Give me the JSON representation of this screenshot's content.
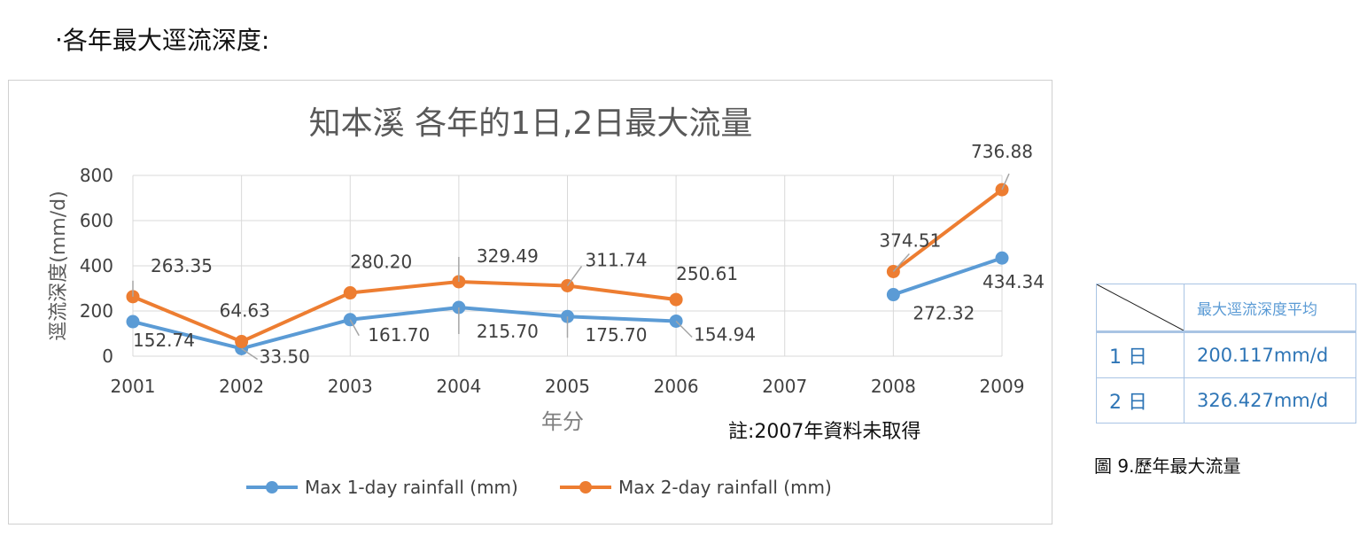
{
  "heading": "‧各年最大逕流深度:",
  "chart_data": {
    "type": "line",
    "title": "知本溪  各年的1日,2日最大流量",
    "xlabel": "年分",
    "ylabel": "逕流深度(mm/d)",
    "ylim": [
      0,
      800
    ],
    "yticks": [
      "0",
      "200",
      "400",
      "600",
      "800"
    ],
    "categories": [
      "2001",
      "2002",
      "2003",
      "2004",
      "2005",
      "2006",
      "2007",
      "2008",
      "2009"
    ],
    "grid": true,
    "legend_position": "bottom",
    "note": "註:2007年資料未取得",
    "series": [
      {
        "name": "Max 1-day rainfall (mm)",
        "color": "#5b9bd5",
        "values": [
          152.74,
          33.5,
          161.7,
          215.7,
          175.7,
          154.94,
          null,
          272.32,
          434.34
        ],
        "labels": [
          "152.74",
          "33.50",
          "161.70",
          "215.70",
          "175.70",
          "154.94",
          "",
          "272.32",
          "434.34"
        ]
      },
      {
        "name": "Max 2-day rainfall (mm)",
        "color": "#ed7d31",
        "values": [
          263.35,
          64.63,
          280.2,
          329.49,
          311.74,
          250.61,
          null,
          374.51,
          736.88
        ],
        "labels": [
          "263.35",
          "64.63",
          "280.20",
          "329.49",
          "311.74",
          "250.61",
          "",
          "374.51",
          "736.88"
        ]
      }
    ]
  },
  "summary_table": {
    "header": "最大逕流深度平均",
    "rows": [
      {
        "label": "1 日",
        "value": "200.117mm/d"
      },
      {
        "label": "2 日",
        "value": "326.427mm/d"
      }
    ]
  },
  "caption": "圖 9.歷年最大流量"
}
